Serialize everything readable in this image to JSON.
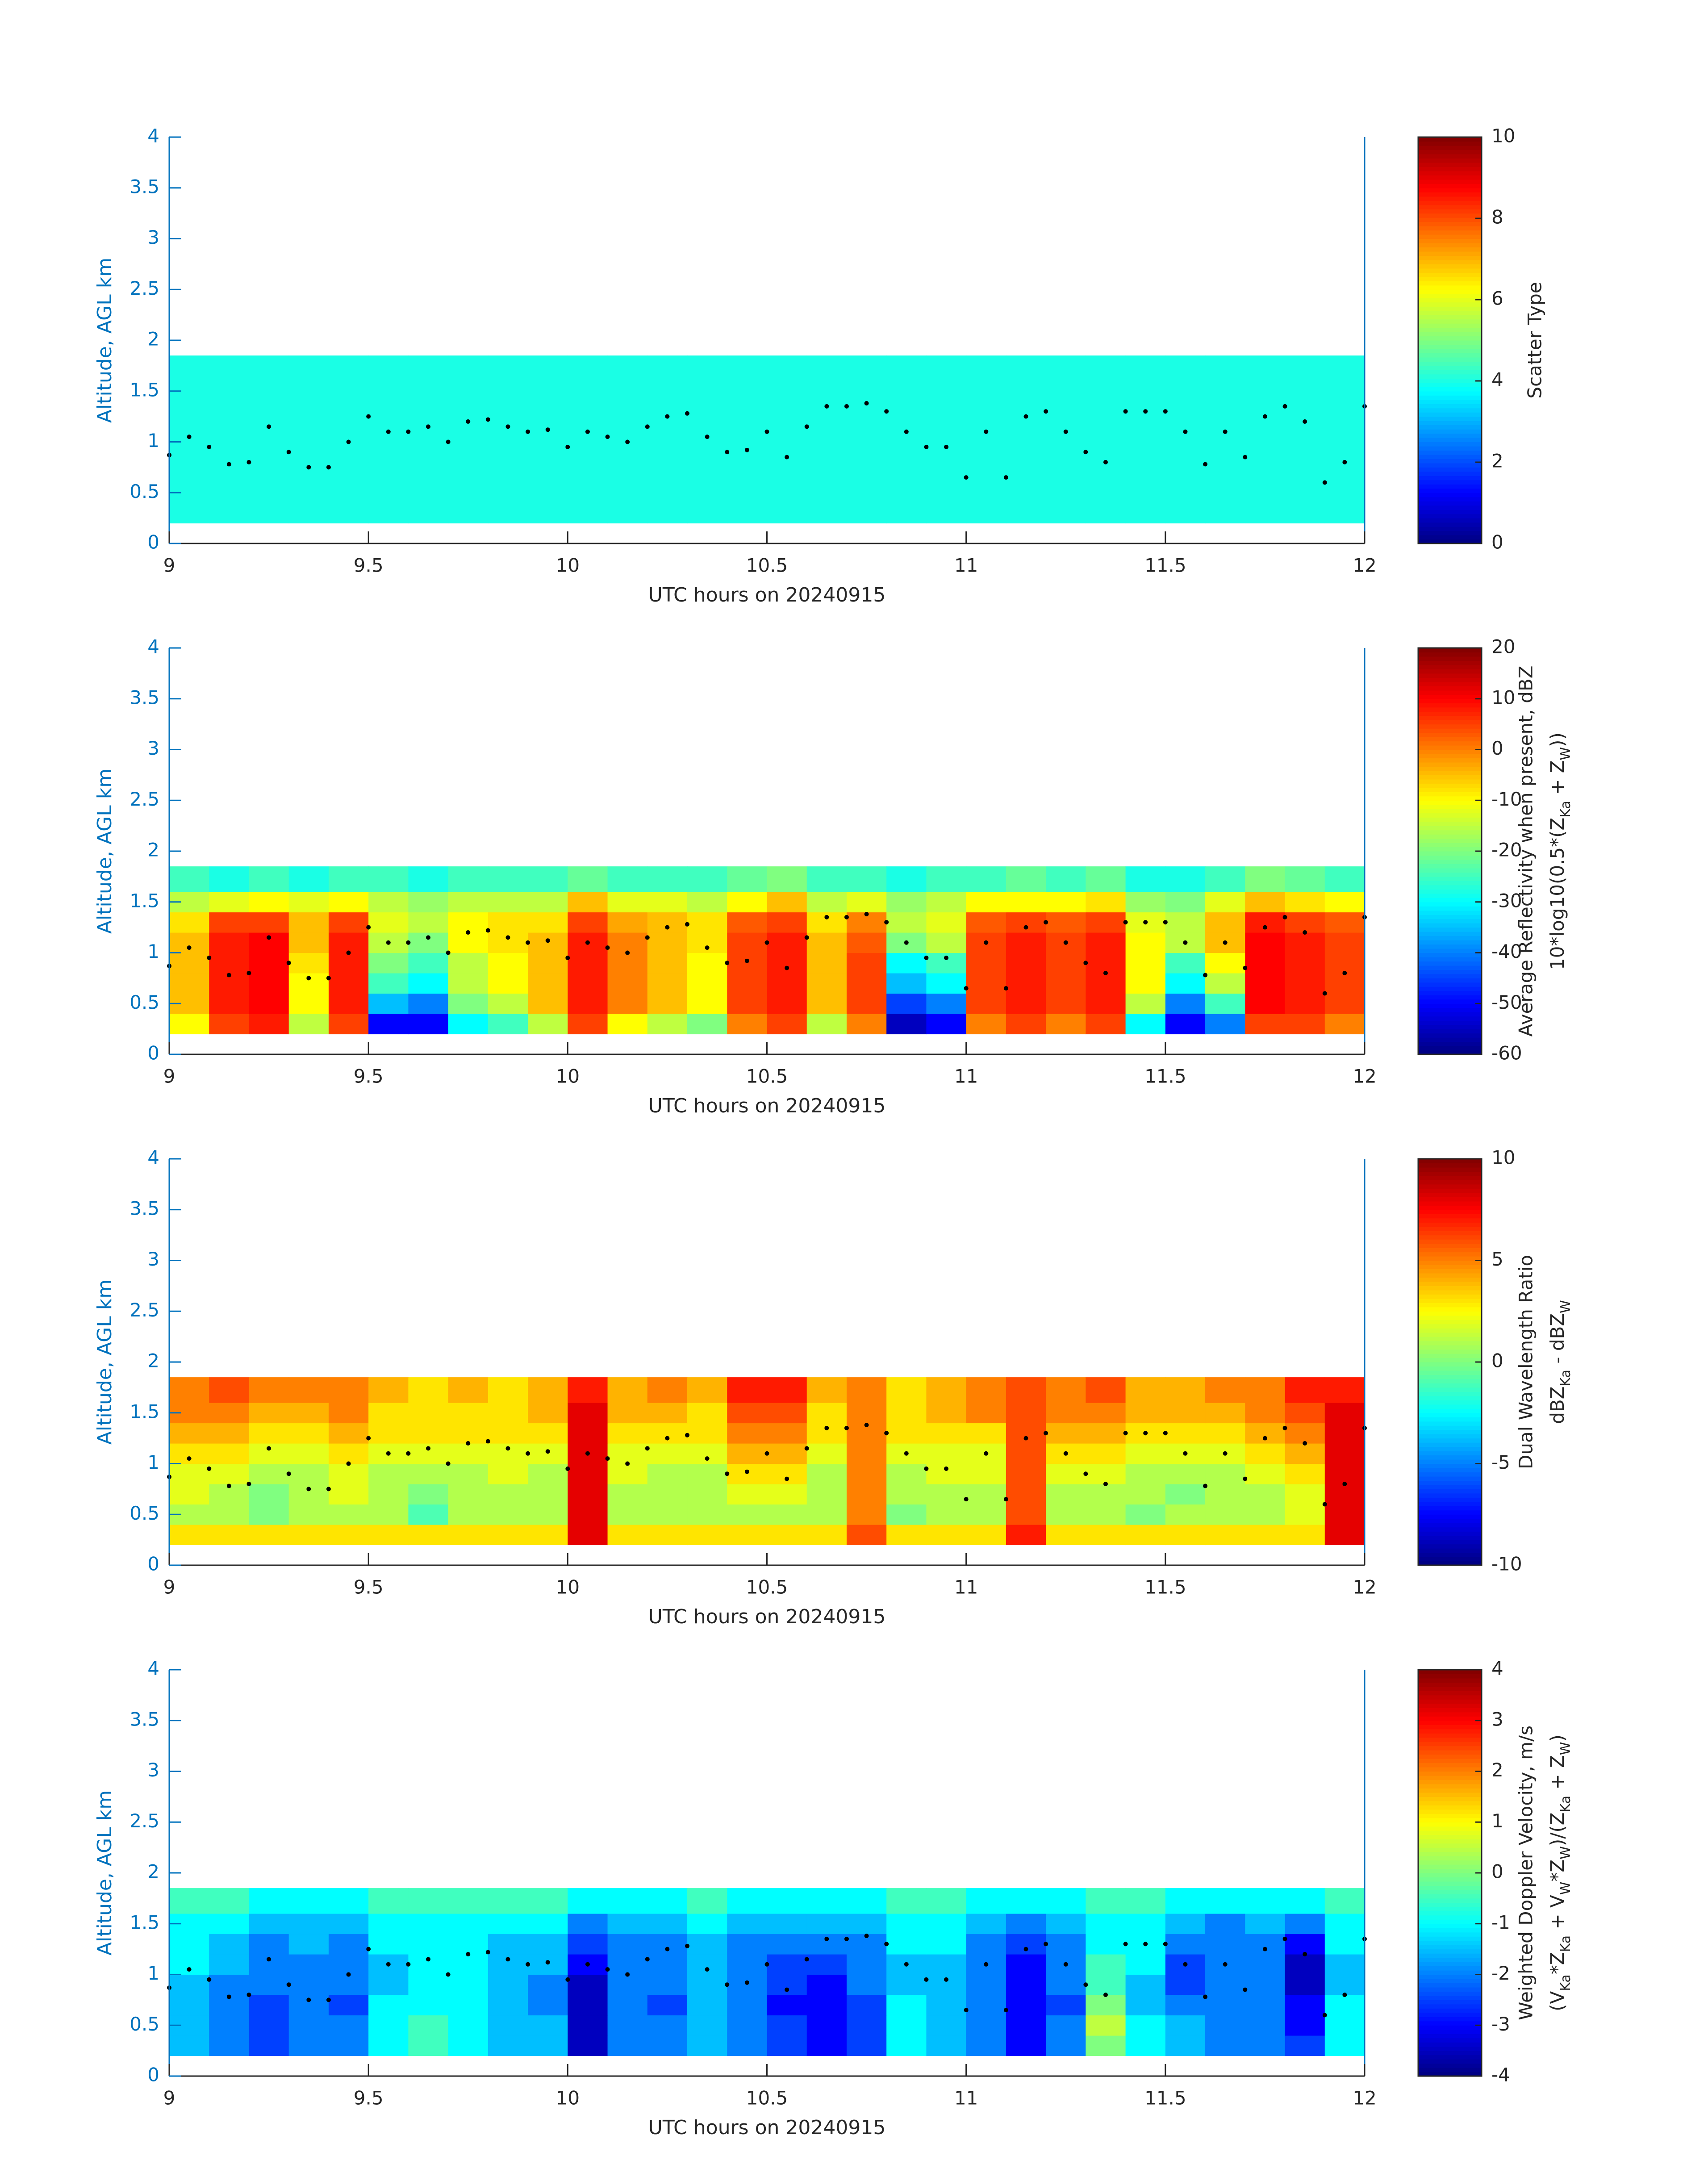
{
  "chart_data": [
    {
      "type": "heatmap",
      "colormap": "jet",
      "xlabel": "UTC hours on 20240915",
      "ylabel": "Altitude, AGL km",
      "xlim": [
        9,
        12
      ],
      "ylim": [
        0,
        4
      ],
      "xticks": [
        9,
        9.5,
        10,
        10.5,
        11,
        11.5,
        12
      ],
      "yticks": [
        0,
        0.5,
        1,
        1.5,
        2,
        2.5,
        3,
        3.5,
        4
      ],
      "clim": [
        0,
        10
      ],
      "cticks": [
        0,
        2,
        4,
        6,
        8,
        10
      ],
      "clabel": [
        "Scatter Type"
      ],
      "x_edges": [
        9,
        9.1,
        9.2,
        9.3,
        9.4,
        9.5,
        9.6,
        9.7,
        9.8,
        9.9,
        10,
        10.1,
        10.2,
        10.3,
        10.4,
        10.5,
        10.6,
        10.7,
        10.8,
        10.9,
        11,
        11.1,
        11.2,
        11.3,
        11.4,
        11.5,
        11.6,
        11.7,
        11.8,
        11.9,
        12
      ],
      "y_edges": [
        0.2,
        0.4,
        0.6,
        0.8,
        1.0,
        1.2,
        1.4,
        1.6,
        1.85
      ],
      "z": [
        [
          4,
          4,
          4,
          4,
          4,
          4,
          4,
          4,
          4,
          4,
          4,
          4,
          4,
          4,
          4,
          4,
          4,
          4,
          4,
          4,
          4,
          4,
          4,
          4,
          4,
          4,
          4,
          4,
          4,
          4
        ],
        [
          4,
          4,
          4,
          4,
          4,
          4,
          4,
          4,
          4,
          4,
          4,
          4,
          4,
          4,
          4,
          4,
          4,
          4,
          4,
          4,
          4,
          4,
          4,
          4,
          4,
          4,
          4,
          4,
          4,
          4
        ],
        [
          4,
          4,
          4,
          4,
          4,
          4,
          4,
          4,
          4,
          4,
          4,
          4,
          4,
          4,
          4,
          4,
          4,
          4,
          4,
          4,
          4,
          4,
          4,
          4,
          4,
          4,
          4,
          4,
          4,
          4
        ],
        [
          4,
          4,
          4,
          4,
          4,
          4,
          4,
          4,
          4,
          4,
          4,
          4,
          4,
          4,
          4,
          4,
          4,
          4,
          4,
          4,
          4,
          4,
          4,
          4,
          4,
          4,
          4,
          4,
          4,
          4
        ],
        [
          4,
          4,
          4,
          4,
          4,
          4,
          4,
          4,
          4,
          4,
          4,
          4,
          4,
          4,
          4,
          4,
          4,
          4,
          4,
          4,
          4,
          4,
          4,
          4,
          4,
          4,
          4,
          4,
          4,
          4
        ],
        [
          4,
          4,
          4,
          4,
          4,
          4,
          4,
          4,
          4,
          4,
          4,
          4,
          4,
          4,
          4,
          4,
          4,
          4,
          4,
          4,
          4,
          4,
          4,
          4,
          4,
          4,
          4,
          4,
          4,
          4
        ],
        [
          4,
          4,
          4,
          4,
          4,
          4,
          4,
          4,
          4,
          4,
          4,
          4,
          4,
          4,
          4,
          4,
          4,
          4,
          4,
          4,
          4,
          4,
          4,
          4,
          4,
          4,
          4,
          4,
          4,
          4
        ],
        [
          4,
          4,
          4,
          4,
          4,
          4,
          4,
          4,
          4,
          4,
          4,
          4,
          4,
          4,
          4,
          4,
          4,
          4,
          4,
          4,
          4,
          4,
          4,
          4,
          4,
          4,
          4,
          4,
          4,
          4
        ]
      ],
      "points": {
        "x": [
          9,
          9.05,
          9.1,
          9.15,
          9.2,
          9.25,
          9.3,
          9.35,
          9.4,
          9.45,
          9.5,
          9.55,
          9.6,
          9.65,
          9.7,
          9.75,
          9.8,
          9.85,
          9.9,
          9.95,
          10,
          10.05,
          10.1,
          10.15,
          10.2,
          10.25,
          10.3,
          10.35,
          10.4,
          10.45,
          10.5,
          10.55,
          10.6,
          10.65,
          10.7,
          10.75,
          10.8,
          10.85,
          10.9,
          10.95,
          11,
          11.05,
          11.1,
          11.15,
          11.2,
          11.25,
          11.3,
          11.35,
          11.4,
          11.45,
          11.5,
          11.55,
          11.6,
          11.65,
          11.7,
          11.75,
          11.8,
          11.85,
          11.9,
          11.95,
          12
        ],
        "y": [
          0.87,
          1.05,
          0.95,
          0.78,
          0.8,
          1.15,
          0.9,
          0.75,
          0.75,
          1.0,
          1.25,
          1.1,
          1.1,
          1.15,
          1.0,
          1.2,
          1.22,
          1.15,
          1.1,
          1.12,
          0.95,
          1.1,
          1.05,
          1.0,
          1.15,
          1.25,
          1.28,
          1.05,
          0.9,
          0.92,
          1.1,
          0.85,
          1.15,
          1.35,
          1.35,
          1.38,
          1.3,
          1.1,
          0.95,
          0.95,
          0.65,
          1.1,
          0.65,
          1.25,
          1.3,
          1.1,
          0.9,
          0.8,
          1.3,
          1.3,
          1.3,
          1.1,
          0.78,
          1.1,
          0.85,
          1.25,
          1.35,
          1.2,
          0.6,
          0.8,
          1.35
        ]
      }
    },
    {
      "type": "heatmap",
      "colormap": "jet",
      "xlabel": "UTC hours on 20240915",
      "ylabel": "Altitude, AGL km",
      "xlim": [
        9,
        12
      ],
      "ylim": [
        0,
        4
      ],
      "xticks": [
        9,
        9.5,
        10,
        10.5,
        11,
        11.5,
        12
      ],
      "yticks": [
        0,
        0.5,
        1,
        1.5,
        2,
        2.5,
        3,
        3.5,
        4
      ],
      "clim": [
        -60,
        20
      ],
      "cticks": [
        -60,
        -50,
        -40,
        -30,
        -20,
        -10,
        0,
        10,
        20
      ],
      "clabel": [
        "Average Reflectivity when present, dBZ",
        [
          "10*log10(0.5*(Z",
          "Ka",
          " + Z",
          "W",
          "))"
        ]
      ],
      "z": [
        [
          -10,
          5,
          8,
          -15,
          5,
          -50,
          -50,
          -30,
          -25,
          -15,
          5,
          -10,
          -15,
          -20,
          0,
          5,
          -15,
          0,
          -55,
          -50,
          0,
          5,
          0,
          5,
          -30,
          -50,
          -40,
          5,
          5,
          0
        ],
        [
          -5,
          8,
          10,
          -10,
          8,
          -35,
          -40,
          -20,
          -15,
          -5,
          8,
          0,
          -5,
          -10,
          5,
          8,
          -5,
          5,
          -45,
          -40,
          5,
          8,
          5,
          8,
          -15,
          -40,
          -25,
          10,
          8,
          5
        ],
        [
          -5,
          8,
          10,
          -10,
          8,
          -25,
          -30,
          -15,
          -10,
          -5,
          8,
          0,
          -5,
          -10,
          5,
          8,
          -5,
          5,
          -35,
          -30,
          5,
          8,
          5,
          8,
          -10,
          -30,
          -15,
          10,
          8,
          5
        ],
        [
          -5,
          8,
          10,
          -8,
          8,
          -20,
          -25,
          -15,
          -10,
          -5,
          8,
          0,
          -5,
          -10,
          5,
          8,
          -5,
          5,
          -30,
          -25,
          5,
          8,
          5,
          8,
          -10,
          -25,
          -10,
          10,
          8,
          5
        ],
        [
          -5,
          8,
          10,
          -5,
          8,
          -15,
          -20,
          -10,
          -8,
          -5,
          8,
          0,
          -5,
          -8,
          5,
          8,
          -5,
          3,
          -20,
          -15,
          5,
          8,
          5,
          8,
          -10,
          -15,
          -5,
          10,
          8,
          5
        ],
        [
          -8,
          5,
          5,
          -5,
          5,
          -12,
          -15,
          -10,
          -8,
          -8,
          5,
          -3,
          -5,
          -8,
          3,
          5,
          -8,
          0,
          -15,
          -12,
          3,
          5,
          3,
          5,
          -12,
          -15,
          -5,
          8,
          5,
          3
        ],
        [
          -15,
          -12,
          -10,
          -12,
          -10,
          -15,
          -18,
          -15,
          -15,
          -15,
          -5,
          -12,
          -12,
          -15,
          -10,
          -5,
          -15,
          -12,
          -18,
          -15,
          -10,
          -10,
          -10,
          -8,
          -18,
          -20,
          -12,
          -5,
          -8,
          -10
        ],
        [
          -25,
          -28,
          -25,
          -28,
          -25,
          -25,
          -28,
          -25,
          -25,
          -25,
          -22,
          -25,
          -25,
          -25,
          -22,
          -20,
          -25,
          -25,
          -28,
          -25,
          -25,
          -22,
          -25,
          -22,
          -28,
          -28,
          -25,
          -20,
          -22,
          -25
        ]
      ]
    },
    {
      "type": "heatmap",
      "colormap": "jet",
      "xlabel": "UTC hours on 20240915",
      "ylabel": "Altitude, AGL km",
      "xlim": [
        9,
        12
      ],
      "ylim": [
        0,
        4
      ],
      "xticks": [
        9,
        9.5,
        10,
        10.5,
        11,
        11.5,
        12
      ],
      "yticks": [
        0,
        0.5,
        1,
        1.5,
        2,
        2.5,
        3,
        3.5,
        4
      ],
      "clim": [
        -10,
        10
      ],
      "cticks": [
        -10,
        -5,
        0,
        5,
        10
      ],
      "clabel": [
        "Dual Wavelength Ratio",
        [
          "dBZ",
          "Ka",
          " - dBZ",
          "W"
        ]
      ],
      "z": [
        [
          3,
          3,
          3,
          3,
          3,
          3,
          3,
          3,
          3,
          3,
          8,
          3,
          3,
          3,
          3,
          3,
          3,
          6,
          3,
          3,
          3,
          7,
          3,
          3,
          3,
          3,
          3,
          3,
          3,
          8
        ],
        [
          1,
          1,
          0,
          1,
          1,
          1,
          -1,
          1,
          1,
          1,
          8,
          1,
          1,
          1,
          1,
          1,
          1,
          5,
          0,
          1,
          1,
          6,
          1,
          1,
          0,
          1,
          1,
          1,
          2,
          8
        ],
        [
          2,
          1,
          0,
          1,
          2,
          1,
          0,
          1,
          1,
          1,
          8,
          1,
          1,
          1,
          2,
          2,
          1,
          5,
          1,
          1,
          1,
          6,
          1,
          1,
          1,
          0,
          1,
          1,
          2,
          8
        ],
        [
          2,
          2,
          1,
          1,
          2,
          1,
          1,
          1,
          2,
          1,
          8,
          2,
          1,
          1,
          3,
          3,
          1,
          5,
          1,
          2,
          2,
          6,
          2,
          2,
          1,
          1,
          1,
          2,
          3,
          8
        ],
        [
          3,
          3,
          2,
          2,
          3,
          2,
          2,
          2,
          2,
          2,
          8,
          2,
          2,
          2,
          4,
          4,
          2,
          5,
          2,
          2,
          2,
          6,
          3,
          3,
          2,
          2,
          2,
          3,
          4,
          8
        ],
        [
          4,
          4,
          3,
          3,
          4,
          3,
          3,
          3,
          3,
          3,
          8,
          3,
          3,
          3,
          5,
          5,
          3,
          5,
          3,
          3,
          3,
          6,
          4,
          4,
          3,
          3,
          3,
          4,
          5,
          8
        ],
        [
          5,
          5,
          4,
          4,
          5,
          3,
          3,
          3,
          3,
          4,
          8,
          4,
          4,
          3,
          6,
          6,
          3,
          5,
          3,
          4,
          5,
          6,
          5,
          5,
          4,
          4,
          4,
          5,
          6,
          8
        ],
        [
          5,
          6,
          5,
          5,
          5,
          4,
          3,
          4,
          3,
          4,
          7,
          4,
          5,
          4,
          7,
          7,
          4,
          5,
          3,
          4,
          5,
          6,
          5,
          6,
          4,
          4,
          5,
          5,
          7,
          7
        ]
      ]
    },
    {
      "type": "heatmap",
      "colormap": "jet",
      "xlabel": "UTC hours on 20240915",
      "ylabel": "Altitude, AGL km",
      "xlim": [
        9,
        12
      ],
      "ylim": [
        0,
        4
      ],
      "xticks": [
        9,
        9.5,
        10,
        10.5,
        11,
        11.5,
        12
      ],
      "yticks": [
        0,
        0.5,
        1,
        1.5,
        2,
        2.5,
        3,
        3.5,
        4
      ],
      "clim": [
        -4,
        4
      ],
      "cticks": [
        -4,
        -3,
        -2,
        -1,
        0,
        1,
        2,
        3,
        4
      ],
      "clabel": [
        "Weighted Doppler Velocity, m/s",
        [
          "(V",
          "Ka",
          "*Z",
          "Ka",
          " + V",
          "W",
          "*Z",
          "W",
          ")/(Z",
          "Ka",
          " + Z",
          "W",
          ")"
        ]
      ],
      "z": [
        [
          -1.5,
          -2,
          -2.5,
          -2,
          -2,
          -1,
          -0.5,
          -1,
          -1.5,
          -1.5,
          -3.5,
          -2,
          -2,
          -1.5,
          -2,
          -2.5,
          -3,
          -2.5,
          -1,
          -1.5,
          -2,
          -3,
          -2,
          0,
          -1,
          -1.5,
          -2,
          -2,
          -2.5,
          -1
        ],
        [
          -1.5,
          -2,
          -2.5,
          -2,
          -2,
          -1,
          -0.5,
          -1,
          -1.5,
          -1.5,
          -3.5,
          -2,
          -2,
          -1.5,
          -2,
          -2.5,
          -3,
          -2.5,
          -1,
          -1.5,
          -2,
          -3,
          -2,
          0.5,
          -1,
          -1.5,
          -2,
          -2,
          -3,
          -1
        ],
        [
          -1.5,
          -2,
          -2.5,
          -2,
          -2.5,
          -1,
          -1,
          -1,
          -1.5,
          -2,
          -3.5,
          -2,
          -2.5,
          -1.5,
          -2,
          -3,
          -3,
          -2.5,
          -1,
          -1.5,
          -2,
          -3,
          -2.5,
          0,
          -1.5,
          -2,
          -2,
          -2,
          -3,
          -1
        ],
        [
          -1.5,
          -2,
          -2,
          -2,
          -2,
          -1.5,
          -1,
          -1,
          -1.5,
          -2,
          -3.5,
          -2,
          -2,
          -1.5,
          -2,
          -2.5,
          -3,
          -2,
          -1.5,
          -1.5,
          -2,
          -3,
          -2,
          -0.5,
          -1.5,
          -2.5,
          -2,
          -2,
          -3.5,
          -1.5
        ],
        [
          -1,
          -1.5,
          -2,
          -2,
          -2,
          -1.5,
          -1,
          -1,
          -1.5,
          -1.5,
          -3,
          -2,
          -2,
          -1.5,
          -2,
          -2.5,
          -2.5,
          -2,
          -1.5,
          -1.5,
          -2,
          -3,
          -2,
          -0.5,
          -1,
          -2.5,
          -2,
          -2,
          -3.5,
          -1.5
        ],
        [
          -1,
          -1.5,
          -2,
          -1.5,
          -2,
          -1,
          -1,
          -1,
          -1.5,
          -1.5,
          -2.5,
          -2,
          -2,
          -1.5,
          -2,
          -2,
          -2,
          -2,
          -1,
          -1,
          -2,
          -2.5,
          -2,
          -1,
          -1,
          -2,
          -2,
          -2,
          -3,
          -1
        ],
        [
          -1,
          -1,
          -1.5,
          -1.5,
          -1.5,
          -1,
          -1,
          -1,
          -1,
          -1,
          -2,
          -1.5,
          -1.5,
          -1,
          -1.5,
          -1.5,
          -1.5,
          -1.5,
          -1,
          -1,
          -1.5,
          -2,
          -1.5,
          -1,
          -1,
          -1.5,
          -2,
          -1.5,
          -2,
          -1
        ],
        [
          -0.5,
          -0.5,
          -1,
          -1,
          -1,
          -0.5,
          -0.5,
          -0.5,
          -0.5,
          -0.5,
          -1,
          -1,
          -1,
          -0.5,
          -1,
          -1,
          -1,
          -1,
          -0.5,
          -0.5,
          -1,
          -1,
          -1,
          -0.5,
          -0.5,
          -1,
          -1,
          -1,
          -1,
          -0.5
        ]
      ]
    }
  ]
}
